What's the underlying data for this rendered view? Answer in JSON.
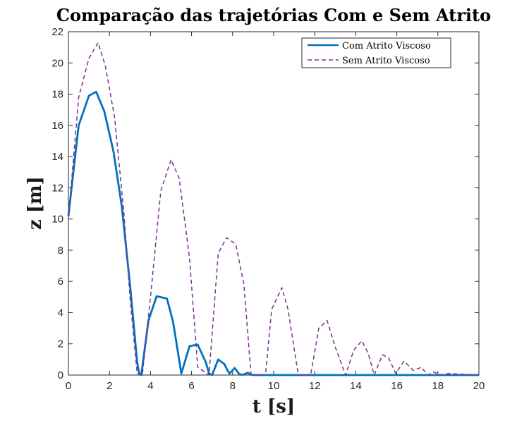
{
  "chart_data": {
    "type": "line",
    "title": "Comparação das trajetórias Com e Sem Atrito",
    "xlabel": "t [s]",
    "ylabel": "z [m]",
    "xlim": [
      0,
      20
    ],
    "ylim": [
      0,
      22
    ],
    "xticks": [
      0,
      2,
      4,
      6,
      8,
      10,
      12,
      14,
      16,
      18,
      20
    ],
    "yticks": [
      0,
      2,
      4,
      6,
      8,
      10,
      12,
      14,
      16,
      18,
      20,
      22
    ],
    "grid": false,
    "legend_position": "top-right",
    "series": [
      {
        "name": "Com Atrito Viscoso",
        "color": "#0072BD",
        "style": "solid",
        "x": [
          0,
          0.5,
          1.0,
          1.35,
          1.75,
          2.2,
          2.6,
          3.0,
          3.35,
          3.45,
          3.55,
          3.9,
          4.3,
          4.8,
          5.1,
          5.5,
          5.9,
          6.3,
          6.7,
          6.85,
          7.0,
          7.3,
          7.6,
          7.75,
          7.85,
          8.1,
          8.3,
          8.45,
          8.75,
          8.9,
          9.1,
          20
        ],
        "y": [
          10.2,
          16.0,
          17.9,
          18.15,
          16.9,
          14.3,
          10.8,
          5.8,
          0.8,
          0.1,
          0.0,
          3.5,
          5.05,
          4.9,
          3.4,
          0.1,
          1.85,
          1.95,
          0.8,
          0.1,
          0.0,
          1.0,
          0.7,
          0.3,
          0.1,
          0.45,
          0.1,
          0.0,
          0.15,
          0.02,
          0.0,
          0.0
        ]
      },
      {
        "name": "Sem Atrito Viscoso",
        "color": "#7E2F8E",
        "style": "dashed",
        "x": [
          0,
          0.5,
          1.0,
          1.45,
          1.8,
          2.25,
          2.7,
          3.0,
          3.35,
          3.6,
          4.0,
          4.5,
          5.0,
          5.4,
          5.9,
          6.3,
          6.85,
          7.3,
          7.7,
          8.15,
          8.55,
          8.9,
          9.6,
          9.9,
          10.4,
          10.7,
          11.2,
          11.8,
          12.2,
          12.6,
          13.0,
          13.5,
          13.9,
          14.3,
          14.6,
          14.9,
          15.3,
          15.6,
          15.95,
          16.35,
          16.8,
          17.2,
          17.5,
          17.8,
          18.1,
          18.5,
          20
        ],
        "y": [
          10.0,
          17.8,
          20.3,
          21.3,
          19.8,
          16.5,
          10.4,
          5.0,
          0.1,
          0.0,
          5.0,
          11.8,
          13.8,
          12.6,
          7.5,
          0.5,
          0.0,
          7.8,
          8.8,
          8.4,
          5.8,
          0.0,
          0.0,
          4.2,
          5.6,
          4.2,
          0.0,
          0.0,
          3.0,
          3.5,
          1.8,
          0.0,
          1.6,
          2.2,
          1.4,
          0.0,
          1.3,
          1.1,
          0.1,
          0.9,
          0.3,
          0.5,
          0.0,
          0.2,
          0.0,
          0.1,
          0.0
        ]
      }
    ]
  }
}
